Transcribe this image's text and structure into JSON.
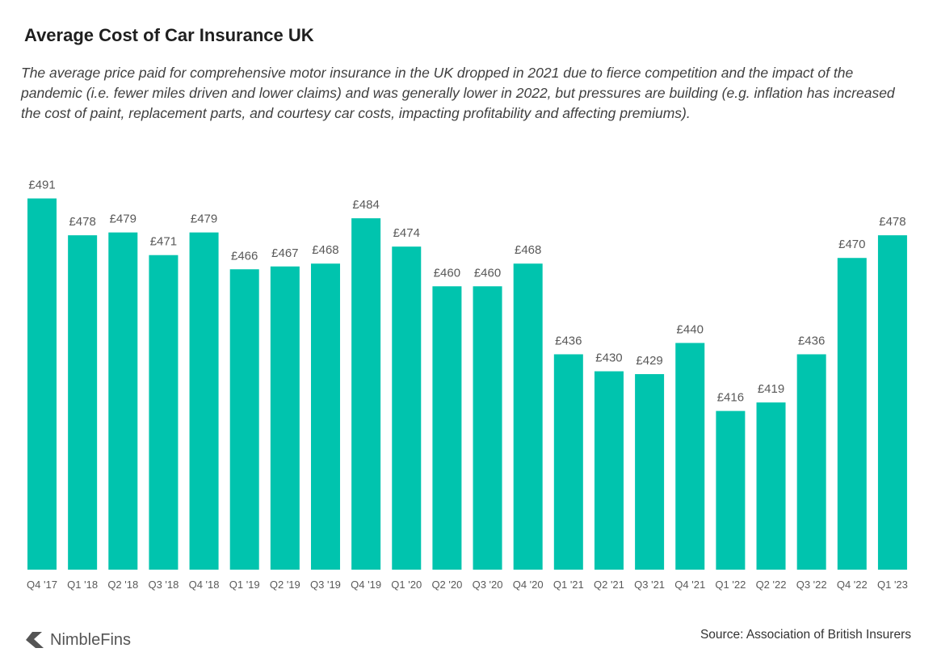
{
  "title": "Average Cost of Car Insurance UK",
  "subtitle": "The average price paid for comprehensive motor insurance in the UK dropped in 2021 due to fierce competition and the impact of the pandemic (i.e. fewer miles driven and lower claims) and was generally lower in 2022, but pressures are building (e.g. inflation has increased the cost of paint, replacement parts, and courtesy car costs, impacting profitability and affecting premiums).",
  "source": "Source: Association of British Insurers",
  "logo": {
    "text": "NimbleFins",
    "icon": "chevron-left-logo-icon"
  },
  "colors": {
    "bar": "#00C4AE",
    "label": "#595959"
  },
  "chart_data": {
    "type": "bar",
    "categories": [
      "Q4 '17",
      "Q1 '18",
      "Q2 '18",
      "Q3 '18",
      "Q4 '18",
      "Q1 '19",
      "Q2 '19",
      "Q3 '19",
      "Q4 '19",
      "Q1 '20",
      "Q2 '20",
      "Q3 '20",
      "Q4 '20",
      "Q1 '21",
      "Q2 '21",
      "Q3 '21",
      "Q4 '21",
      "Q1 '22",
      "Q2 '22",
      "Q3 '22",
      "Q4 '22",
      "Q1 '23"
    ],
    "values": [
      491,
      478,
      479,
      471,
      479,
      466,
      467,
      468,
      484,
      474,
      460,
      460,
      468,
      436,
      430,
      429,
      440,
      416,
      419,
      436,
      470,
      478
    ],
    "value_prefix": "£",
    "ylim": [
      360,
      500
    ],
    "grid": false,
    "y_axis_visible": false,
    "legend": "none"
  }
}
